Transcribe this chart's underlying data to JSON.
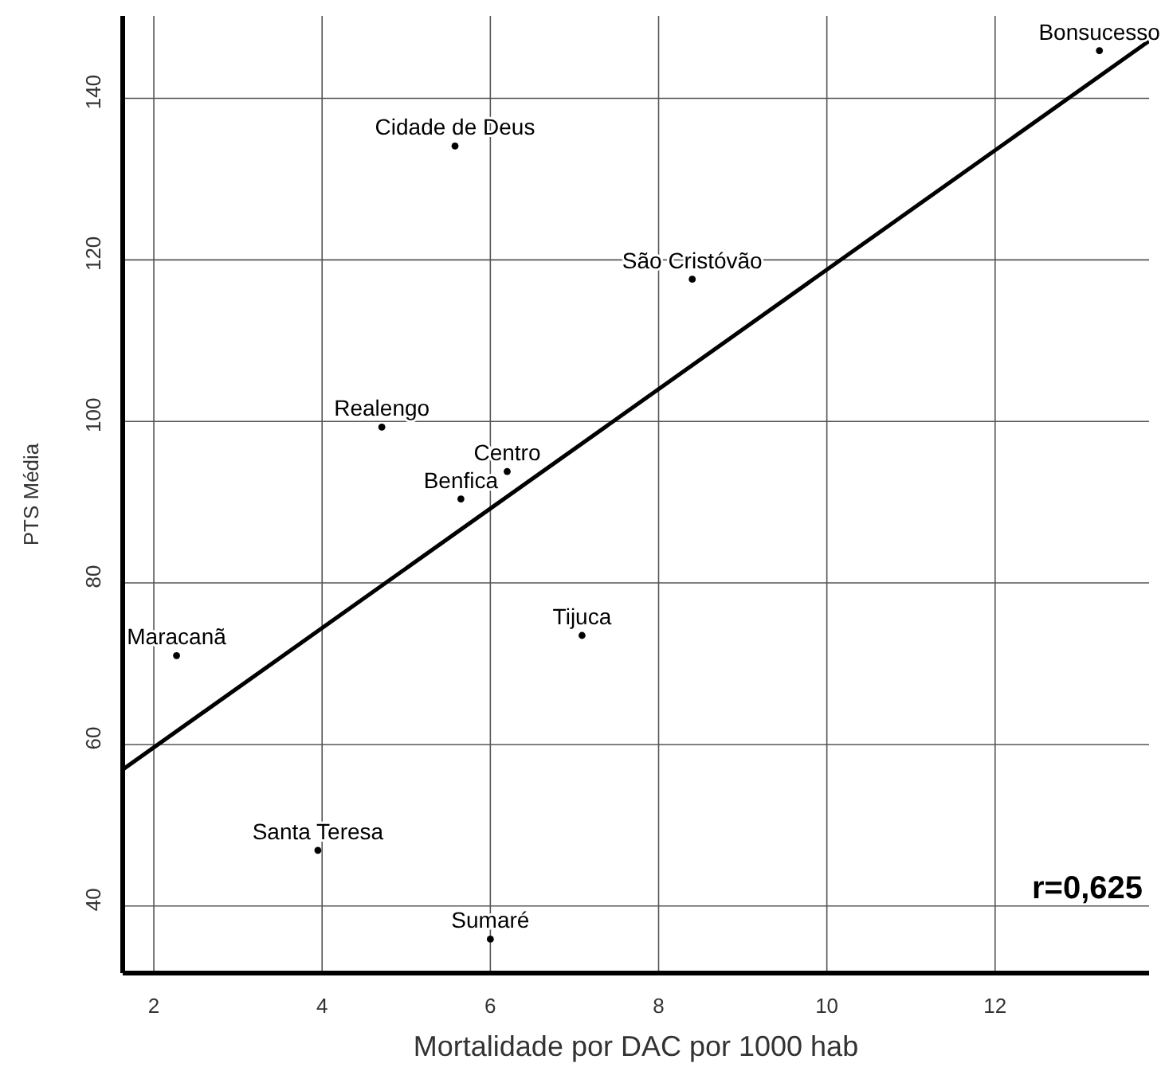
{
  "chart_data": {
    "type": "scatter",
    "xlabel": "Mortalidade por DAC por 1000 hab",
    "ylabel": "PTS Média",
    "xlim": [
      1.63,
      13.83
    ],
    "ylim": [
      31.7,
      150.2
    ],
    "xticks": [
      2,
      4,
      6,
      8,
      10,
      12
    ],
    "yticks": [
      40,
      60,
      80,
      100,
      120,
      140
    ],
    "grid": true,
    "series": [
      {
        "marker": "circle",
        "color": "#000000",
        "x": [
          13.24,
          5.58,
          8.4,
          4.71,
          6.2,
          5.65,
          2.27,
          7.09,
          3.95,
          6.0
        ],
        "values": [
          145.9,
          134.1,
          117.6,
          99.3,
          93.8,
          90.4,
          71.0,
          73.5,
          46.9,
          35.9
        ]
      },
      {
        "type": "line",
        "color": "#000000",
        "line_style": "solid",
        "x": [
          1.63,
          13.83
        ],
        "values": [
          56.9,
          147.1
        ]
      }
    ],
    "annotations": [
      {
        "text": "Bonsucesso",
        "x": 13.24,
        "y": 145.9
      },
      {
        "text": "Cidade de Deus",
        "x": 5.58,
        "y": 134.1
      },
      {
        "text": "São Cristóvão",
        "x": 8.4,
        "y": 117.6
      },
      {
        "text": "Realengo",
        "x": 4.71,
        "y": 99.3
      },
      {
        "text": "Centro",
        "x": 6.2,
        "y": 93.8
      },
      {
        "text": "Benfica",
        "x": 5.65,
        "y": 90.4
      },
      {
        "text": "Maracanã",
        "x": 2.27,
        "y": 71.0
      },
      {
        "text": "Tijuca",
        "x": 7.09,
        "y": 73.5
      },
      {
        "text": "Santa Teresa",
        "x": 3.95,
        "y": 46.9
      },
      {
        "text": "Sumaré",
        "x": 6.0,
        "y": 35.9
      },
      "r=0,625"
    ]
  }
}
